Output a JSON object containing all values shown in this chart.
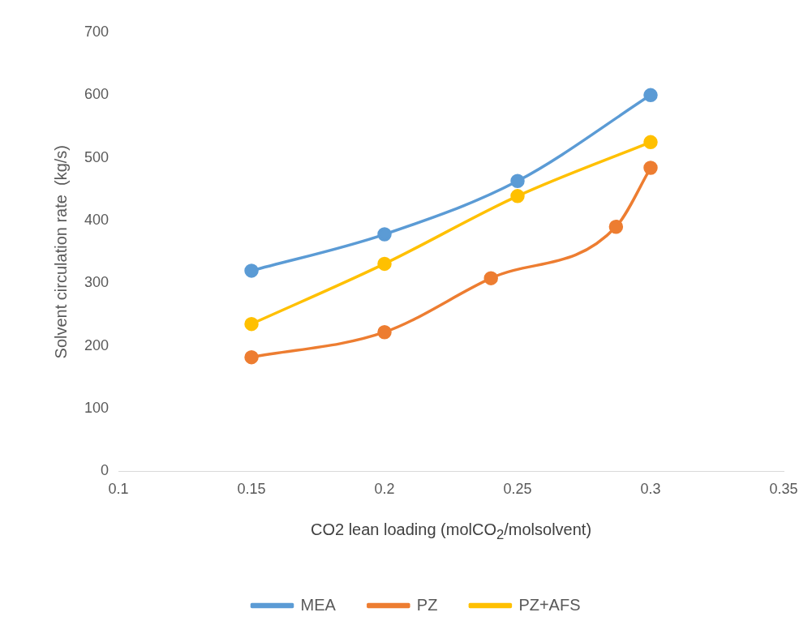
{
  "chart_data": {
    "type": "line",
    "xlabel": "CO2 lean loading (molCO$_{2}$/molsolvent)",
    "ylabel": "Solvent circulation rate  (kg/s)",
    "xlim": [
      0.1,
      0.35
    ],
    "xticks": [
      0.1,
      0.15,
      0.2,
      0.25,
      0.3,
      0.35
    ],
    "ylim": [
      0,
      700
    ],
    "yticks": [
      0,
      100,
      200,
      300,
      400,
      500,
      600,
      700
    ],
    "grid": false,
    "legend": "bottom",
    "marker": "circle",
    "line_style": "solid",
    "series": [
      {
        "name": "MEA",
        "color": "#5b9bd5",
        "x": [
          0.15,
          0.2,
          0.25,
          0.3
        ],
        "values": [
          320,
          378,
          463,
          600
        ]
      },
      {
        "name": "PZ",
        "color": "#ed7d31",
        "x": [
          0.15,
          0.2,
          0.24,
          0.287,
          0.3
        ],
        "values": [
          182,
          222,
          308,
          390,
          484
        ]
      },
      {
        "name": "PZ+AFS",
        "color": "#ffc000",
        "x": [
          0.15,
          0.2,
          0.25,
          0.3
        ],
        "values": [
          235,
          331,
          439,
          525
        ]
      }
    ]
  }
}
